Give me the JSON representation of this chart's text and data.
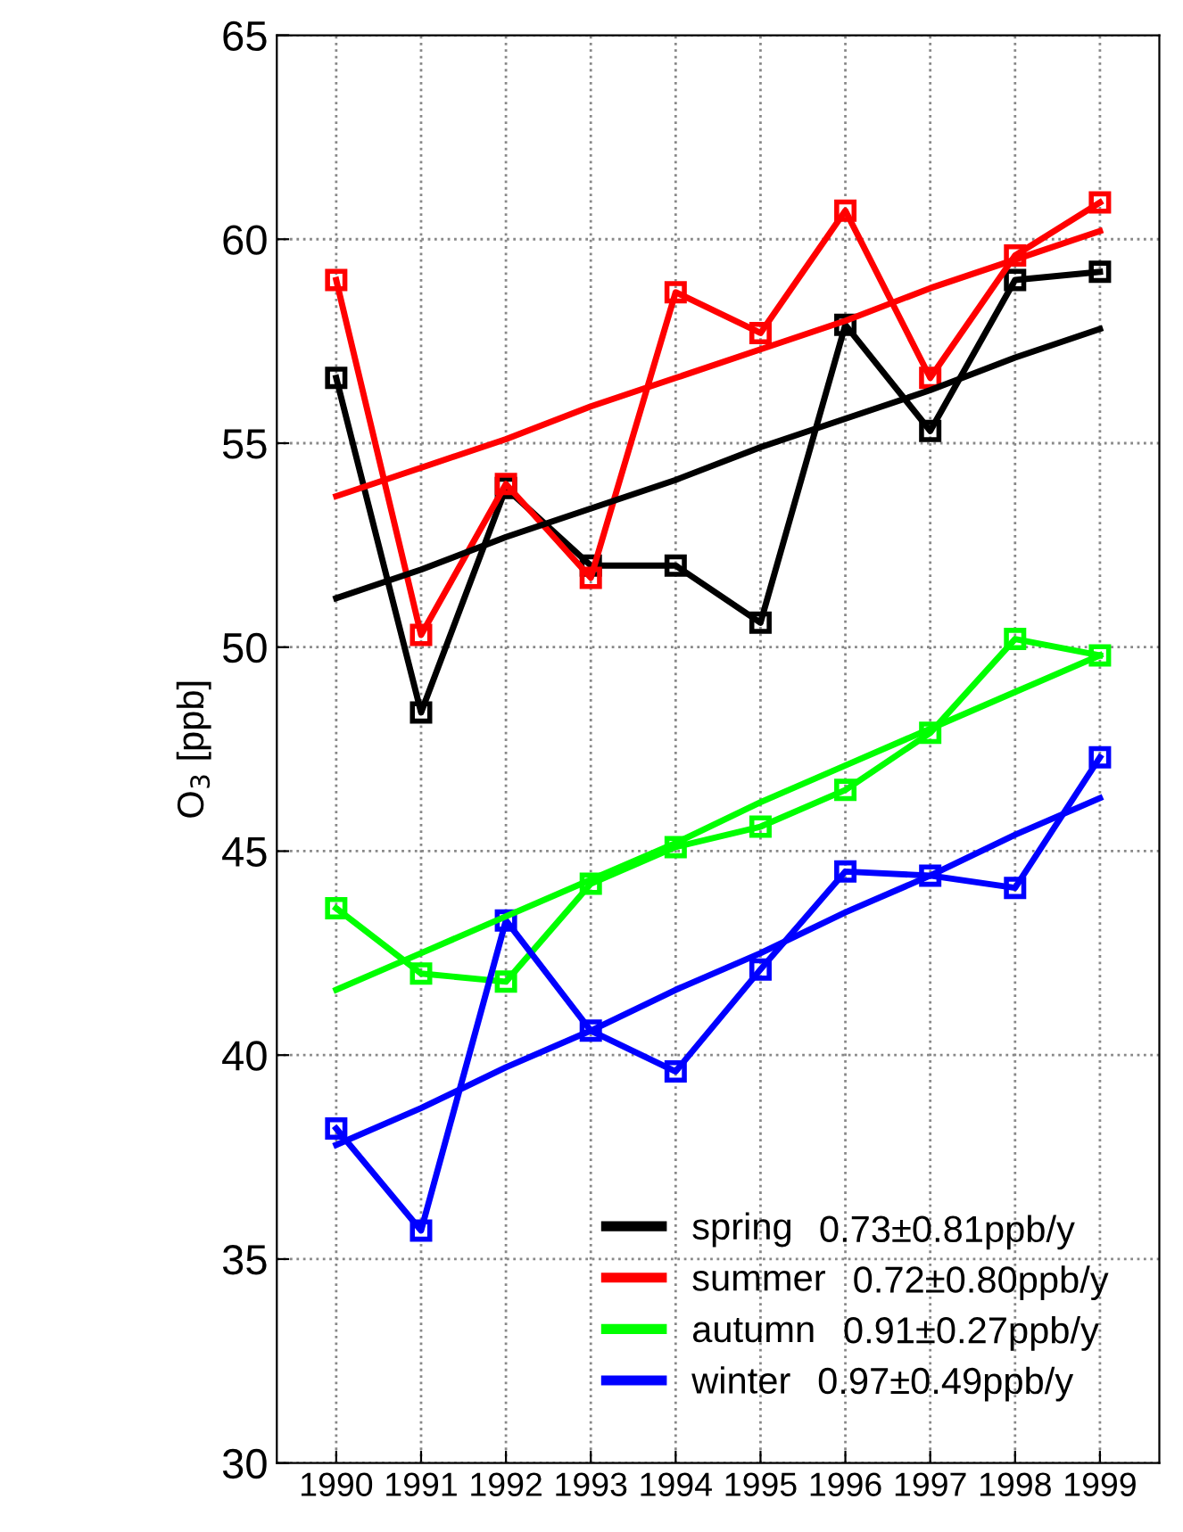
{
  "chart_data": {
    "type": "line",
    "ylabel": "O$_{3}$ [ppb]",
    "x": [
      1990,
      1991,
      1992,
      1993,
      1994,
      1995,
      1996,
      1997,
      1998,
      1999
    ],
    "series": [
      {
        "name": "spring",
        "color": "#000000",
        "values": [
          56.6,
          48.4,
          53.9,
          52.0,
          52.0,
          50.6,
          57.9,
          55.3,
          59.0,
          59.2
        ]
      },
      {
        "name": "summer",
        "color": "#ff0000",
        "values": [
          59.0,
          50.3,
          54.0,
          51.7,
          58.7,
          57.7,
          60.7,
          56.6,
          59.6,
          60.9
        ]
      },
      {
        "name": "autumn",
        "color": "#00ff00",
        "values": [
          43.6,
          42.0,
          41.8,
          44.2,
          45.1,
          45.6,
          46.5,
          47.9,
          50.2,
          49.8
        ]
      },
      {
        "name": "winter",
        "color": "#0000ff",
        "values": [
          38.2,
          35.7,
          43.3,
          40.6,
          39.6,
          42.1,
          44.5,
          44.4,
          44.1,
          47.3
        ]
      },
      {
        "color": "#000000",
        "values": [
          51.2,
          51.9,
          52.7,
          53.4,
          54.1,
          54.9,
          55.6,
          56.3,
          57.1,
          57.8
        ],
        "marker": "none"
      },
      {
        "color": "#ff0000",
        "values": [
          53.7,
          54.4,
          55.1,
          55.9,
          56.6,
          57.3,
          58.0,
          58.8,
          59.5,
          60.2
        ],
        "marker": "none"
      },
      {
        "color": "#00ff00",
        "values": [
          41.6,
          42.5,
          43.4,
          44.3,
          45.2,
          46.2,
          47.1,
          48.0,
          48.9,
          49.8
        ],
        "marker": "none"
      },
      {
        "color": "#0000ff",
        "values": [
          37.8,
          38.7,
          39.7,
          40.6,
          41.6,
          42.5,
          43.5,
          44.4,
          45.4,
          46.3
        ],
        "marker": "none"
      }
    ],
    "annotations": [
      "0.73±0.81ppb/y",
      "0.72±0.80ppb/y",
      "0.91±0.27ppb/y",
      "0.97±0.49ppb/y"
    ],
    "xlim": [
      1989.3,
      1999.7
    ],
    "xticks": [
      1990,
      1991,
      1992,
      1993,
      1994,
      1995,
      1996,
      1997,
      1998,
      1999
    ],
    "ylim": [
      30,
      65
    ],
    "yticks": [
      30,
      35,
      40,
      45,
      50,
      55,
      60,
      65
    ],
    "grid": true,
    "legend": "bottom right",
    "marker": "square",
    "line_style": "solid"
  }
}
